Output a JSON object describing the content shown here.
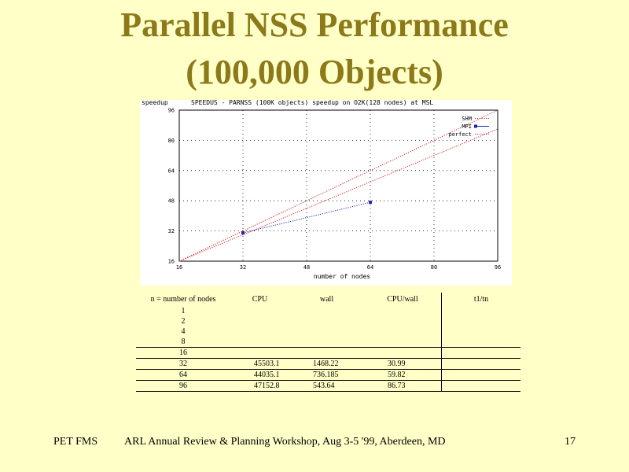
{
  "slide": {
    "title_line1": "Parallel NSS Performance",
    "title_line2": "(100,000 Objects)"
  },
  "chart_data": {
    "type": "line",
    "title": "SPEEDUS - PARNSS (100K objects) speedup on O2K(128 nodes) at MSL",
    "xlabel": "number of nodes",
    "ylabel": "speedup",
    "xlim": [
      16,
      96
    ],
    "ylim": [
      16,
      96
    ],
    "xticks": [
      16,
      32,
      48,
      64,
      80,
      96
    ],
    "yticks": [
      16,
      32,
      48,
      64,
      80,
      96
    ],
    "grid": true,
    "legend_position": "top-right",
    "series": [
      {
        "name": "SHM",
        "color": "#cc2222",
        "style": "dotted",
        "x": [
          16,
          96
        ],
        "y": [
          16,
          86
        ]
      },
      {
        "name": "MPI",
        "color": "#1a2aa8",
        "style": "dotted",
        "markers": true,
        "x": [
          32,
          64
        ],
        "y": [
          30.99,
          47.2
        ]
      },
      {
        "name": "perfect",
        "color": "#cc2222",
        "style": "dotted",
        "x": [
          16,
          96
        ],
        "y": [
          16,
          96
        ]
      }
    ],
    "tick_labels_x": [
      "16",
      "32",
      "48",
      "64",
      "80",
      "96"
    ],
    "tick_labels_y": [
      "16",
      "32",
      "48",
      "64",
      "80",
      "96"
    ]
  },
  "table": {
    "headers": [
      "n = number of nodes",
      "CPU",
      "wall",
      "CPU/wall",
      "t1/tn"
    ],
    "rows": [
      {
        "n": "1",
        "cpu": "",
        "wall": "",
        "ratio": ""
      },
      {
        "n": "2",
        "cpu": "",
        "wall": "",
        "ratio": ""
      },
      {
        "n": "4",
        "cpu": "",
        "wall": "",
        "ratio": ""
      },
      {
        "n": "8",
        "cpu": "",
        "wall": "",
        "ratio": ""
      },
      {
        "n": "16",
        "cpu": "",
        "wall": "",
        "ratio": ""
      },
      {
        "n": "32",
        "cpu": "45503.1",
        "wall": "1468.22",
        "ratio": "30.99"
      },
      {
        "n": "64",
        "cpu": "44035.1",
        "wall": "736.185",
        "ratio": "59.82"
      },
      {
        "n": "96",
        "cpu": "47152.8",
        "wall": "543.64",
        "ratio": "86.73"
      }
    ]
  },
  "footer": {
    "left": "PET FMS",
    "center": "ARL Annual Review & Planning Workshop, Aug 3-5 '99,  Aberdeen, MD",
    "page_number": "17"
  }
}
